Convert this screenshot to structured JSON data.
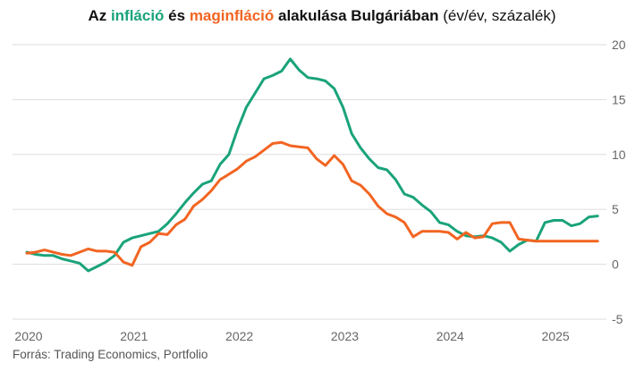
{
  "title": {
    "prefix": "Az ",
    "series1": "infláció",
    "middle": " és ",
    "series2": "maginfláció",
    "suffix": " alakulása Bulgáriában",
    "units": " (év/év, százalék)"
  },
  "source": "Forrás: Trading Economics, Portfolio",
  "colors": {
    "inflation": "#1aa37a",
    "core": "#f26522",
    "grid": "#dddddd",
    "ticks": "#666666"
  },
  "chart_data": {
    "type": "line",
    "xlim": [
      2020.0,
      2025.5
    ],
    "ylim": [
      -5,
      20
    ],
    "grid": "horizontal",
    "x_ticks": [
      "2020",
      "2021",
      "2022",
      "2023",
      "2024",
      "2025"
    ],
    "y_ticks": [
      "20",
      "15",
      "10",
      "5",
      "0",
      "-5"
    ],
    "series": [
      {
        "name": "infláció",
        "color": "#1aa37a",
        "x": [
          2020.0,
          2020.083,
          2020.167,
          2020.25,
          2020.333,
          2020.417,
          2020.5,
          2020.583,
          2020.667,
          2020.75,
          2020.833,
          2020.917,
          2021.0,
          2021.083,
          2021.167,
          2021.25,
          2021.333,
          2021.417,
          2021.5,
          2021.583,
          2021.667,
          2021.75,
          2021.833,
          2021.917,
          2022.0,
          2022.083,
          2022.167,
          2022.25,
          2022.333,
          2022.417,
          2022.5,
          2022.583,
          2022.667,
          2022.75,
          2022.833,
          2022.917,
          2023.0,
          2023.083,
          2023.167,
          2023.25,
          2023.333,
          2023.417,
          2023.5,
          2023.583,
          2023.667,
          2023.75,
          2023.833,
          2023.917,
          2024.0,
          2024.083,
          2024.167,
          2024.25,
          2024.333,
          2024.417,
          2024.5,
          2024.583,
          2024.667,
          2024.75,
          2024.833,
          2024.917,
          2025.0,
          2025.083,
          2025.167,
          2025.25,
          2025.333,
          2025.417
        ],
        "values": [
          1.1,
          0.9,
          0.8,
          0.8,
          0.5,
          0.3,
          0.1,
          -0.6,
          -0.2,
          0.2,
          0.8,
          2.0,
          2.4,
          2.6,
          2.8,
          3.0,
          3.7,
          4.6,
          5.6,
          6.5,
          7.3,
          7.6,
          9.1,
          10.0,
          12.3,
          14.3,
          15.6,
          16.9,
          17.2,
          17.6,
          18.7,
          17.7,
          17.0,
          16.9,
          16.7,
          16.0,
          14.3,
          11.9,
          10.6,
          9.6,
          8.8,
          8.6,
          7.7,
          6.4,
          6.1,
          5.4,
          4.8,
          3.8,
          3.6,
          3.0,
          2.6,
          2.5,
          2.6,
          2.4,
          2.0,
          1.2,
          1.8,
          2.2,
          2.1,
          3.8,
          4.0,
          4.0,
          3.5,
          3.7,
          4.3,
          4.4
        ]
      },
      {
        "name": "maginfláció",
        "color": "#f26522",
        "x": [
          2020.0,
          2020.083,
          2020.167,
          2020.25,
          2020.333,
          2020.417,
          2020.5,
          2020.583,
          2020.667,
          2020.75,
          2020.833,
          2020.917,
          2021.0,
          2021.083,
          2021.167,
          2021.25,
          2021.333,
          2021.417,
          2021.5,
          2021.583,
          2021.667,
          2021.75,
          2021.833,
          2021.917,
          2022.0,
          2022.083,
          2022.167,
          2022.25,
          2022.333,
          2022.417,
          2022.5,
          2022.583,
          2022.667,
          2022.75,
          2022.833,
          2022.917,
          2023.0,
          2023.083,
          2023.167,
          2023.25,
          2023.333,
          2023.417,
          2023.5,
          2023.583,
          2023.667,
          2023.75,
          2023.833,
          2023.917,
          2024.0,
          2024.083,
          2024.167,
          2024.25,
          2024.333,
          2024.417,
          2024.5,
          2024.583,
          2024.667,
          2024.75,
          2024.833,
          2024.917,
          2025.0,
          2025.083,
          2025.167,
          2025.25,
          2025.333,
          2025.417
        ],
        "values": [
          1.0,
          1.1,
          1.3,
          1.1,
          0.9,
          0.8,
          1.1,
          1.4,
          1.2,
          1.2,
          1.1,
          0.2,
          -0.1,
          1.6,
          2.0,
          2.8,
          2.7,
          3.6,
          4.1,
          5.3,
          5.9,
          6.7,
          7.7,
          8.2,
          8.7,
          9.4,
          9.8,
          10.4,
          11.0,
          11.1,
          10.8,
          10.7,
          10.6,
          9.6,
          9.0,
          9.9,
          9.1,
          7.6,
          7.2,
          6.4,
          5.3,
          4.6,
          4.3,
          3.8,
          2.5,
          3.0,
          3.0,
          3.0,
          2.9,
          2.3,
          2.9,
          2.4,
          2.5,
          3.7,
          3.8,
          3.8,
          2.3,
          2.2,
          2.1,
          2.1,
          2.1,
          2.1,
          2.1,
          2.1,
          2.1,
          2.1
        ]
      }
    ]
  }
}
